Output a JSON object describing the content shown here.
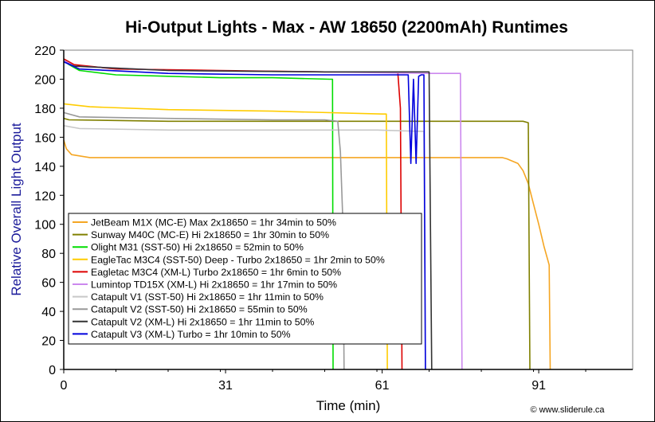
{
  "chart_data": {
    "type": "line",
    "title": "Hi-Output Lights - Max - AW 18650 (2200mAh) Runtimes",
    "xlabel": "Time (min)",
    "ylabel": "Relative Overall Light Output",
    "xlim": [
      0,
      109
    ],
    "ylim": [
      0,
      220
    ],
    "xticks": [
      0,
      31,
      61,
      91
    ],
    "yticks": [
      0,
      20,
      40,
      60,
      80,
      100,
      120,
      140,
      160,
      180,
      200,
      220
    ],
    "grid": false,
    "legend": "left",
    "credit": "© www.sliderule.ca",
    "series": [
      {
        "name": "JetBeam M1X (MC-E) Max 2x18650 = 1hr 34min to 50%",
        "color": "#f5a623",
        "points": [
          [
            0,
            158
          ],
          [
            0.5,
            152
          ],
          [
            1.5,
            148
          ],
          [
            5,
            146
          ],
          [
            20,
            146
          ],
          [
            40,
            146
          ],
          [
            60,
            146
          ],
          [
            84,
            146
          ],
          [
            85,
            145
          ],
          [
            87,
            142
          ],
          [
            88,
            137
          ],
          [
            89,
            128
          ],
          [
            90,
            114
          ],
          [
            91,
            100
          ],
          [
            92,
            85
          ],
          [
            93,
            72
          ],
          [
            93.2,
            0
          ]
        ]
      },
      {
        "name": "Sunway M40C (MC-E) Hi 2x18650 = 1hr 30min to 50%",
        "color": "#808000",
        "points": [
          [
            0,
            173
          ],
          [
            1,
            172
          ],
          [
            20,
            171
          ],
          [
            40,
            171
          ],
          [
            60,
            171
          ],
          [
            80,
            171
          ],
          [
            88,
            171
          ],
          [
            89,
            170
          ],
          [
            89.3,
            0
          ]
        ]
      },
      {
        "name": "Olight M31 (SST-50) Hi 2x18650 = 52min to 50%",
        "color": "#00dd00",
        "points": [
          [
            0,
            213
          ],
          [
            1,
            210
          ],
          [
            3,
            206
          ],
          [
            10,
            203
          ],
          [
            20,
            202
          ],
          [
            30,
            201
          ],
          [
            40,
            201
          ],
          [
            51,
            200
          ],
          [
            51.5,
            200
          ],
          [
            51.6,
            0
          ]
        ]
      },
      {
        "name": "EagleTac M3C4 (SST-50) Deep - Turbo 2x18650 = 1hr 2min to 50%",
        "color": "#ffcc00",
        "points": [
          [
            0,
            183
          ],
          [
            5,
            181
          ],
          [
            20,
            179
          ],
          [
            40,
            178
          ],
          [
            61,
            176
          ],
          [
            61.8,
            176
          ],
          [
            62,
            0
          ]
        ]
      },
      {
        "name": "Eagletac M3C4 (XM-L) Turbo 2x18650 = 1hr 6min to 50%",
        "color": "#dd0000",
        "points": [
          [
            0,
            214
          ],
          [
            2,
            210
          ],
          [
            10,
            207
          ],
          [
            30,
            206
          ],
          [
            50,
            205
          ],
          [
            64,
            205
          ],
          [
            64.5,
            180
          ],
          [
            64.8,
            0
          ]
        ]
      },
      {
        "name": "Lumintop TD15X (XM-L) Hi 2x18650 = 1hr 17min to 50%",
        "color": "#cc88ee",
        "points": [
          [
            0,
            213
          ],
          [
            2,
            209
          ],
          [
            20,
            206
          ],
          [
            50,
            205
          ],
          [
            70,
            204
          ],
          [
            76,
            204
          ],
          [
            76.3,
            0
          ]
        ]
      },
      {
        "name": "Catapult V1 (SST-50) Hi 2x18650 = 1hr 11min to 50%",
        "color": "#c8c8c8",
        "points": [
          [
            0,
            168
          ],
          [
            3,
            166
          ],
          [
            20,
            165
          ],
          [
            40,
            165
          ],
          [
            60,
            165
          ],
          [
            69,
            164
          ],
          [
            69.3,
            0
          ]
        ]
      },
      {
        "name": "Catapult V2 (SST-50) Hi 2x18650 = 55min to 50%",
        "color": "#999999",
        "points": [
          [
            0,
            177
          ],
          [
            3,
            174
          ],
          [
            20,
            173
          ],
          [
            40,
            172
          ],
          [
            50,
            172
          ],
          [
            52.5,
            171
          ],
          [
            53,
            150
          ],
          [
            53.5,
            100
          ],
          [
            53.7,
            0
          ]
        ]
      },
      {
        "name": "Catapult V2 (XM-L) Hi 2x18650 = 1hr 11min to 50%",
        "color": "#333333",
        "points": [
          [
            0,
            212
          ],
          [
            2,
            209
          ],
          [
            20,
            206
          ],
          [
            50,
            205
          ],
          [
            70,
            205
          ],
          [
            70.5,
            0
          ]
        ]
      },
      {
        "name": "Catapult V3 (XM-L) Turbo = 1hr 10min to 50%",
        "color": "#0000dd",
        "points": [
          [
            0,
            212
          ],
          [
            3,
            207
          ],
          [
            20,
            204
          ],
          [
            40,
            203
          ],
          [
            66,
            203
          ],
          [
            66.5,
            142
          ],
          [
            67,
            200
          ],
          [
            67.5,
            142
          ],
          [
            68,
            202
          ],
          [
            68.5,
            203
          ],
          [
            69,
            203
          ],
          [
            69.3,
            0
          ]
        ]
      }
    ]
  }
}
